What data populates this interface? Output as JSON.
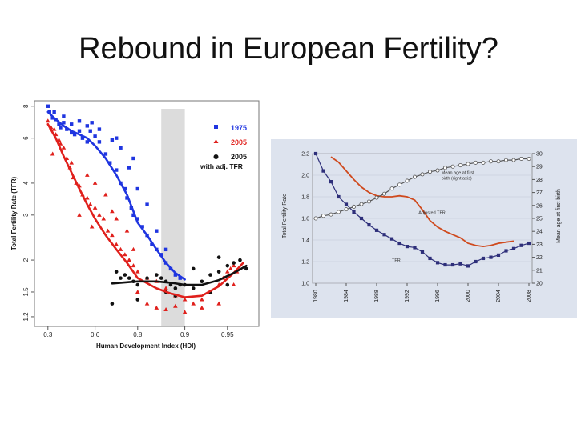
{
  "title": "Rebound in European Fertility?",
  "colors": {
    "blue": "#1f35e0",
    "red": "#e0201c",
    "black": "#111111",
    "panel_bg": "#dde3ee",
    "navy": "#2e2f7a",
    "orange": "#cf4a1e",
    "shade": "#dcdcdc"
  },
  "chart_data": [
    {
      "type": "scatter",
      "title": "",
      "xlabel": "Human Development Index (HDI)",
      "ylabel": "Total Fertility Rate (TFR)",
      "x_ticks": [
        "0.3",
        "0.6",
        "0.8",
        "0.9",
        "0.95"
      ],
      "y_ticks": [
        "8",
        "6",
        "4",
        "3",
        "2",
        "1.5",
        "1.2"
      ],
      "y_scale": "log",
      "shaded_band": [
        0.85,
        0.9
      ],
      "legend_position": "top-right",
      "legend": [
        {
          "label": "1975",
          "color": "#1f35e0",
          "marker": "square"
        },
        {
          "label": "2005",
          "color": "#e0201c",
          "marker": "triangle"
        },
        {
          "label": "2005 with adj. TFR",
          "color": "#111111",
          "marker": "circle"
        }
      ],
      "series": [
        {
          "name": "1975",
          "color": "#1f35e0",
          "marker": "square",
          "points": [
            [
              0.3,
              8.0
            ],
            [
              0.31,
              7.6
            ],
            [
              0.33,
              7.2
            ],
            [
              0.34,
              7.6
            ],
            [
              0.35,
              7.1
            ],
            [
              0.37,
              6.8
            ],
            [
              0.38,
              6.6
            ],
            [
              0.4,
              6.9
            ],
            [
              0.42,
              6.5
            ],
            [
              0.45,
              6.3
            ],
            [
              0.47,
              6.2
            ],
            [
              0.5,
              6.4
            ],
            [
              0.52,
              6.0
            ],
            [
              0.55,
              5.8
            ],
            [
              0.57,
              6.4
            ],
            [
              0.6,
              6.1
            ],
            [
              0.62,
              5.8
            ],
            [
              0.65,
              5.2
            ],
            [
              0.67,
              4.8
            ],
            [
              0.7,
              4.5
            ],
            [
              0.72,
              4.0
            ],
            [
              0.74,
              3.8
            ],
            [
              0.75,
              3.5
            ],
            [
              0.77,
              3.2
            ],
            [
              0.78,
              3.0
            ],
            [
              0.8,
              2.9
            ],
            [
              0.81,
              2.7
            ],
            [
              0.82,
              2.5
            ],
            [
              0.83,
              2.3
            ],
            [
              0.84,
              2.2
            ],
            [
              0.85,
              2.1
            ],
            [
              0.86,
              1.95
            ],
            [
              0.87,
              1.85
            ],
            [
              0.88,
              1.75
            ],
            [
              0.89,
              1.7
            ],
            [
              0.45,
              6.8
            ],
            [
              0.55,
              6.7
            ],
            [
              0.62,
              6.5
            ],
            [
              0.68,
              5.9
            ],
            [
              0.72,
              5.5
            ],
            [
              0.78,
              5.0
            ],
            [
              0.8,
              3.8
            ],
            [
              0.82,
              3.3
            ],
            [
              0.84,
              2.6
            ],
            [
              0.86,
              2.2
            ],
            [
              0.76,
              4.6
            ],
            [
              0.7,
              6.0
            ],
            [
              0.58,
              6.9
            ],
            [
              0.4,
              7.3
            ],
            [
              0.5,
              7.0
            ]
          ],
          "fit": [
            [
              0.3,
              7.6
            ],
            [
              0.35,
              7.1
            ],
            [
              0.4,
              6.7
            ],
            [
              0.45,
              6.4
            ],
            [
              0.5,
              6.2
            ],
            [
              0.55,
              6.0
            ],
            [
              0.6,
              5.6
            ],
            [
              0.65,
              5.0
            ],
            [
              0.7,
              4.3
            ],
            [
              0.75,
              3.6
            ],
            [
              0.78,
              3.1
            ],
            [
              0.8,
              2.8
            ],
            [
              0.82,
              2.5
            ],
            [
              0.84,
              2.2
            ],
            [
              0.86,
              1.95
            ],
            [
              0.88,
              1.78
            ],
            [
              0.9,
              1.68
            ]
          ]
        },
        {
          "name": "2005",
          "color": "#e0201c",
          "marker": "triangle",
          "points": [
            [
              0.3,
              7.0
            ],
            [
              0.32,
              6.6
            ],
            [
              0.34,
              6.5
            ],
            [
              0.35,
              6.2
            ],
            [
              0.37,
              5.9
            ],
            [
              0.38,
              5.7
            ],
            [
              0.4,
              5.5
            ],
            [
              0.42,
              5.0
            ],
            [
              0.44,
              4.6
            ],
            [
              0.46,
              4.2
            ],
            [
              0.48,
              4.0
            ],
            [
              0.5,
              3.9
            ],
            [
              0.52,
              3.6
            ],
            [
              0.55,
              3.5
            ],
            [
              0.57,
              3.3
            ],
            [
              0.6,
              3.2
            ],
            [
              0.62,
              3.0
            ],
            [
              0.64,
              2.9
            ],
            [
              0.66,
              2.6
            ],
            [
              0.68,
              2.5
            ],
            [
              0.7,
              2.3
            ],
            [
              0.72,
              2.2
            ],
            [
              0.74,
              2.1
            ],
            [
              0.76,
              2.0
            ],
            [
              0.78,
              1.9
            ],
            [
              0.8,
              1.8
            ],
            [
              0.82,
              1.7
            ],
            [
              0.84,
              1.65
            ],
            [
              0.86,
              1.55
            ],
            [
              0.88,
              1.45
            ],
            [
              0.9,
              1.4
            ],
            [
              0.91,
              1.35
            ],
            [
              0.92,
              1.4
            ],
            [
              0.93,
              1.5
            ],
            [
              0.94,
              1.6
            ],
            [
              0.945,
              1.7
            ],
            [
              0.95,
              1.8
            ],
            [
              0.955,
              1.85
            ],
            [
              0.96,
              1.9
            ],
            [
              0.965,
              1.8
            ],
            [
              0.33,
              5.2
            ],
            [
              0.45,
              4.8
            ],
            [
              0.55,
              4.3
            ],
            [
              0.6,
              4.0
            ],
            [
              0.65,
              3.6
            ],
            [
              0.7,
              2.9
            ],
            [
              0.75,
              2.6
            ],
            [
              0.8,
              1.5
            ],
            [
              0.82,
              1.35
            ],
            [
              0.84,
              1.3
            ],
            [
              0.86,
              1.28
            ],
            [
              0.88,
              1.32
            ],
            [
              0.9,
              1.25
            ],
            [
              0.92,
              1.3
            ],
            [
              0.94,
              1.35
            ],
            [
              0.96,
              1.6
            ],
            [
              0.5,
              3.0
            ],
            [
              0.58,
              2.7
            ],
            [
              0.68,
              3.1
            ],
            [
              0.78,
              2.2
            ]
          ],
          "fit": [
            [
              0.3,
              6.8
            ],
            [
              0.35,
              6.0
            ],
            [
              0.4,
              5.1
            ],
            [
              0.45,
              4.4
            ],
            [
              0.5,
              3.8
            ],
            [
              0.55,
              3.3
            ],
            [
              0.6,
              2.9
            ],
            [
              0.65,
              2.5
            ],
            [
              0.7,
              2.2
            ],
            [
              0.75,
              1.95
            ],
            [
              0.8,
              1.7
            ],
            [
              0.84,
              1.55
            ],
            [
              0.87,
              1.48
            ],
            [
              0.9,
              1.43
            ],
            [
              0.92,
              1.45
            ],
            [
              0.94,
              1.58
            ],
            [
              0.96,
              1.78
            ],
            [
              0.975,
              1.95
            ]
          ]
        },
        {
          "name": "2005 with adj. TFR",
          "color": "#111111",
          "marker": "circle",
          "points": [
            [
              0.7,
              1.8
            ],
            [
              0.72,
              1.7
            ],
            [
              0.74,
              1.75
            ],
            [
              0.76,
              1.7
            ],
            [
              0.78,
              1.65
            ],
            [
              0.8,
              1.6
            ],
            [
              0.82,
              1.7
            ],
            [
              0.84,
              1.75
            ],
            [
              0.85,
              1.7
            ],
            [
              0.86,
              1.65
            ],
            [
              0.87,
              1.6
            ],
            [
              0.88,
              1.55
            ],
            [
              0.89,
              1.6
            ],
            [
              0.9,
              1.6
            ],
            [
              0.91,
              1.55
            ],
            [
              0.92,
              1.65
            ],
            [
              0.93,
              1.75
            ],
            [
              0.94,
              1.8
            ],
            [
              0.95,
              1.9
            ],
            [
              0.96,
              1.95
            ],
            [
              0.97,
              2.0
            ],
            [
              0.68,
              1.35
            ],
            [
              0.8,
              1.4
            ],
            [
              0.86,
              1.5
            ],
            [
              0.88,
              1.45
            ],
            [
              0.93,
              1.5
            ],
            [
              0.95,
              1.6
            ],
            [
              0.98,
              1.85
            ],
            [
              0.91,
              1.85
            ],
            [
              0.94,
              2.05
            ]
          ],
          "fit": [
            [
              0.68,
              1.62
            ],
            [
              0.72,
              1.63
            ],
            [
              0.76,
              1.64
            ],
            [
              0.8,
              1.65
            ],
            [
              0.84,
              1.65
            ],
            [
              0.87,
              1.63
            ],
            [
              0.9,
              1.6
            ],
            [
              0.92,
              1.6
            ],
            [
              0.94,
              1.67
            ],
            [
              0.96,
              1.78
            ],
            [
              0.98,
              1.9
            ]
          ]
        }
      ]
    },
    {
      "type": "line",
      "title": "",
      "xlabel": "",
      "ylabel": "Total Fertility Rate",
      "ylabel_right": "Mean age at first birth",
      "x_ticks": [
        "1980",
        "1984",
        "1988",
        "1992",
        "1996",
        "2000",
        "2004",
        "2008"
      ],
      "y_ticks_left": [
        "2.2",
        "2.0",
        "1.8",
        "1.6",
        "1.4",
        "1.2",
        "1.0"
      ],
      "y_ticks_right": [
        "30",
        "29",
        "28",
        "27",
        "26",
        "25",
        "24",
        "23",
        "22",
        "21",
        "20"
      ],
      "xlim": [
        1980,
        2008
      ],
      "ylim": [
        1.0,
        2.2
      ],
      "ylim_right": [
        20,
        30
      ],
      "annotations": [
        {
          "text": "Mean age at first",
          "text2": "birth (right axis)",
          "x": 1996.5,
          "y": 2.01
        },
        {
          "text": "Adjusted TFR",
          "x": 1993.5,
          "y": 1.64
        },
        {
          "text": "TFR",
          "x": 1990,
          "y": 1.2
        }
      ],
      "series": [
        {
          "name": "TFR",
          "color": "#2e2f7a",
          "marker": "square",
          "x": [
            1980,
            1981,
            1982,
            1983,
            1984,
            1985,
            1986,
            1987,
            1988,
            1989,
            1990,
            1991,
            1992,
            1993,
            1994,
            1995,
            1996,
            1997,
            1998,
            1999,
            2000,
            2001,
            2002,
            2003,
            2004,
            2005,
            2006,
            2007,
            2008
          ],
          "values": [
            2.2,
            2.04,
            1.94,
            1.8,
            1.73,
            1.66,
            1.6,
            1.54,
            1.49,
            1.45,
            1.41,
            1.37,
            1.34,
            1.33,
            1.29,
            1.23,
            1.19,
            1.17,
            1.17,
            1.18,
            1.16,
            1.2,
            1.23,
            1.24,
            1.26,
            1.3,
            1.32,
            1.35,
            1.37
          ]
        },
        {
          "name": "Adjusted TFR",
          "color": "#cf4a1e",
          "marker": "none",
          "x": [
            1982,
            1983,
            1984,
            1985,
            1986,
            1987,
            1988,
            1989,
            1990,
            1991,
            1992,
            1993,
            1994,
            1995,
            1996,
            1997,
            1998,
            1999,
            2000,
            2001,
            2002,
            2003,
            2004,
            2005,
            2006
          ],
          "values": [
            2.17,
            2.12,
            2.04,
            1.96,
            1.89,
            1.84,
            1.81,
            1.8,
            1.8,
            1.81,
            1.8,
            1.77,
            1.68,
            1.58,
            1.52,
            1.48,
            1.45,
            1.42,
            1.37,
            1.35,
            1.34,
            1.35,
            1.37,
            1.38,
            1.39
          ]
        },
        {
          "name": "Mean age at first birth (right axis)",
          "color": "#555555",
          "marker": "open-circle",
          "axis": "right",
          "x": [
            1980,
            1981,
            1982,
            1983,
            1984,
            1985,
            1986,
            1987,
            1988,
            1989,
            1990,
            1991,
            1992,
            1993,
            1994,
            1995,
            1996,
            1997,
            1998,
            1999,
            2000,
            2001,
            2002,
            2003,
            2004,
            2005,
            2006,
            2007,
            2008
          ],
          "values": [
            25.0,
            25.2,
            25.3,
            25.5,
            25.7,
            25.9,
            26.1,
            26.3,
            26.6,
            26.9,
            27.3,
            27.6,
            27.9,
            28.2,
            28.4,
            28.6,
            28.7,
            28.9,
            29.0,
            29.1,
            29.2,
            29.3,
            29.3,
            29.4,
            29.4,
            29.5,
            29.5,
            29.6,
            29.6
          ]
        }
      ]
    }
  ]
}
